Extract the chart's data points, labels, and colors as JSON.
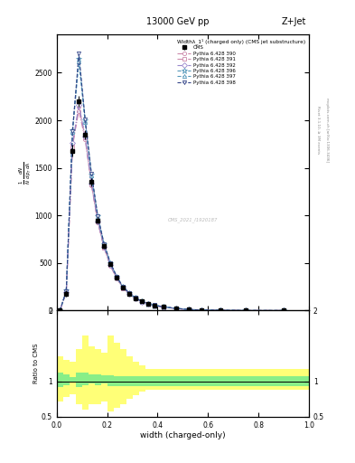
{
  "title": "13000 GeV pp",
  "top_right_label": "Z+Jet",
  "plot_title": "Widthλ_1¹ (charged only) (CMS jet substructure)",
  "cms_label": "CMS",
  "watermark": "CMS_2021_I1920187",
  "right_label_top": "Rivet 3.1.10, ≥ 3M events",
  "right_label_bot": "mcplots.cern.ch [arXiv:1306.3436]",
  "xlabel": "width (charged-only)",
  "ylim": [
    0,
    2900
  ],
  "xlim": [
    0,
    1
  ],
  "ratio_ylim": [
    0.5,
    2.0
  ],
  "x_bins": [
    0.0,
    0.025,
    0.05,
    0.075,
    0.1,
    0.125,
    0.15,
    0.175,
    0.2,
    0.225,
    0.25,
    0.275,
    0.3,
    0.325,
    0.35,
    0.375,
    0.4,
    0.45,
    0.5,
    0.55,
    0.6,
    0.7,
    0.8,
    1.0
  ],
  "cms_data": [
    0,
    180,
    1680,
    2200,
    1850,
    1350,
    950,
    680,
    490,
    350,
    240,
    180,
    130,
    95,
    72,
    55,
    38,
    22,
    12,
    6,
    3,
    1,
    0.5,
    0
  ],
  "cms_errors": [
    0,
    30,
    60,
    60,
    50,
    40,
    30,
    25,
    20,
    18,
    15,
    12,
    10,
    8,
    6,
    5,
    4,
    3,
    2,
    1.5,
    1,
    0.5,
    0.3,
    0
  ],
  "pythia_lines": [
    {
      "label": "Pythia 6.428 390",
      "color": "#cc88aa",
      "linestyle": "-.",
      "marker": "o",
      "values": [
        0,
        200,
        1750,
        2100,
        1800,
        1320,
        930,
        660,
        470,
        340,
        235,
        175,
        125,
        92,
        70,
        52,
        36,
        21,
        11,
        5.5,
        2.8,
        1.0,
        0.4,
        0
      ]
    },
    {
      "label": "Pythia 6.428 391",
      "color": "#cc88aa",
      "linestyle": "-.",
      "marker": "s",
      "values": [
        0,
        190,
        1720,
        2150,
        1820,
        1330,
        935,
        665,
        475,
        342,
        237,
        177,
        127,
        93,
        71,
        53,
        37,
        21.5,
        11.2,
        5.6,
        2.9,
        1.1,
        0.45,
        0
      ]
    },
    {
      "label": "Pythia 6.428 392",
      "color": "#9988cc",
      "linestyle": "-.",
      "marker": "D",
      "values": [
        0,
        195,
        1760,
        2160,
        1830,
        1340,
        940,
        668,
        478,
        344,
        238,
        178,
        128,
        94,
        72,
        54,
        37.5,
        22,
        11.4,
        5.7,
        2.9,
        1.1,
        0.46,
        0
      ]
    },
    {
      "label": "Pythia 6.428 396",
      "color": "#5599bb",
      "linestyle": "--",
      "marker": "*",
      "values": [
        0,
        210,
        1900,
        2650,
        2000,
        1430,
        990,
        700,
        500,
        358,
        248,
        185,
        133,
        97,
        74,
        56,
        39,
        23,
        12,
        6,
        3.1,
        1.2,
        0.5,
        0
      ]
    },
    {
      "label": "Pythia 6.428 397",
      "color": "#5599bb",
      "linestyle": "--",
      "marker": "^",
      "values": [
        0,
        205,
        1880,
        2620,
        1980,
        1420,
        985,
        695,
        498,
        356,
        246,
        183,
        131,
        96,
        73,
        55,
        38.5,
        22.5,
        11.8,
        5.9,
        3.0,
        1.15,
        0.48,
        0
      ]
    },
    {
      "label": "Pythia 6.428 398",
      "color": "#334488",
      "linestyle": "--",
      "marker": "v",
      "values": [
        0,
        208,
        1890,
        2700,
        2010,
        1440,
        995,
        702,
        502,
        360,
        250,
        186,
        134,
        98,
        75,
        57,
        39.5,
        23.2,
        12.1,
        6.1,
        3.1,
        1.2,
        0.5,
        0
      ]
    }
  ],
  "ratio_green_lo": [
    0.92,
    0.95,
    1.0,
    0.92,
    0.95,
    0.97,
    0.95,
    0.97,
    0.93,
    0.93,
    0.93,
    0.93,
    0.93,
    0.93,
    0.93,
    0.93,
    0.93,
    0.93,
    0.93,
    0.93,
    0.93,
    0.93,
    0.93,
    0.93
  ],
  "ratio_green_hi": [
    1.12,
    1.1,
    1.06,
    1.12,
    1.12,
    1.1,
    1.1,
    1.08,
    1.08,
    1.07,
    1.07,
    1.07,
    1.07,
    1.07,
    1.07,
    1.07,
    1.07,
    1.07,
    1.07,
    1.07,
    1.07,
    1.07,
    1.07,
    1.07
  ],
  "ratio_yellow_lo": [
    0.72,
    0.78,
    0.82,
    0.68,
    0.6,
    0.68,
    0.68,
    0.72,
    0.58,
    0.62,
    0.68,
    0.75,
    0.8,
    0.85,
    0.88,
    0.88,
    0.88,
    0.88,
    0.88,
    0.88,
    0.88,
    0.88,
    0.88,
    0.88
  ],
  "ratio_yellow_hi": [
    1.35,
    1.3,
    1.28,
    1.45,
    1.65,
    1.5,
    1.45,
    1.4,
    1.65,
    1.55,
    1.45,
    1.35,
    1.28,
    1.22,
    1.18,
    1.18,
    1.18,
    1.18,
    1.18,
    1.18,
    1.18,
    1.18,
    1.18,
    1.18
  ]
}
